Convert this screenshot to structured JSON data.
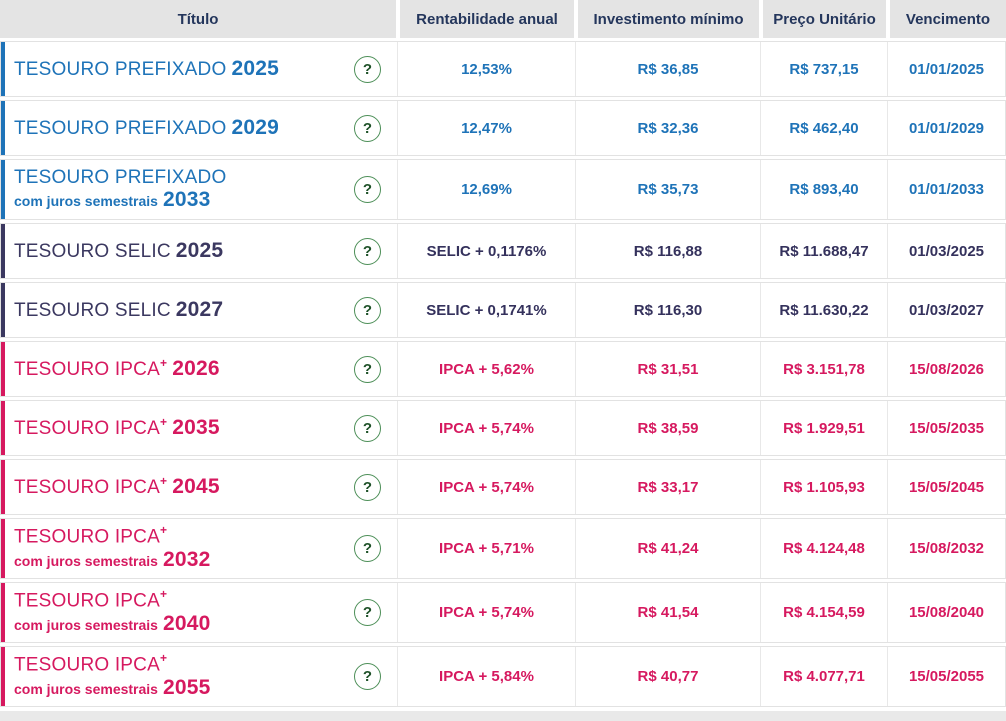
{
  "colors": {
    "prefixado_accent": "#1e73b8",
    "selic_accent": "#3b3860",
    "ipca_accent": "#d6195f",
    "header_bg": "#e4e4e4",
    "header_text": "#24365c",
    "help_icon_green": "#4d8f58"
  },
  "table": {
    "help_icon": "?",
    "columns": {
      "title": "Título",
      "rate": "Rentabilidade anual",
      "min": "Investimento mínimo",
      "price": "Preço Unitário",
      "maturity": "Vencimento"
    },
    "rows": [
      {
        "type": "prefixado",
        "title": "TESOURO PREFIXADO",
        "sup": "",
        "subtitle": "",
        "year": "2025",
        "rate": "12,53%",
        "min": "R$ 36,85",
        "price": "R$ 737,15",
        "maturity": "01/01/2025"
      },
      {
        "type": "prefixado",
        "title": "TESOURO PREFIXADO",
        "sup": "",
        "subtitle": "",
        "year": "2029",
        "rate": "12,47%",
        "min": "R$ 32,36",
        "price": "R$ 462,40",
        "maturity": "01/01/2029"
      },
      {
        "type": "prefixado",
        "title": "TESOURO PREFIXADO",
        "sup": "",
        "subtitle": "com juros semestrais",
        "year": "2033",
        "rate": "12,69%",
        "min": "R$ 35,73",
        "price": "R$ 893,40",
        "maturity": "01/01/2033"
      },
      {
        "type": "selic",
        "title": "TESOURO SELIC",
        "sup": "",
        "subtitle": "",
        "year": "2025",
        "rate": "SELIC + 0,1176%",
        "min": "R$ 116,88",
        "price": "R$ 11.688,47",
        "maturity": "01/03/2025"
      },
      {
        "type": "selic",
        "title": "TESOURO SELIC",
        "sup": "",
        "subtitle": "",
        "year": "2027",
        "rate": "SELIC + 0,1741%",
        "min": "R$ 116,30",
        "price": "R$ 11.630,22",
        "maturity": "01/03/2027"
      },
      {
        "type": "ipca",
        "title": "TESOURO IPCA",
        "sup": "+",
        "subtitle": "",
        "year": "2026",
        "rate": "IPCA + 5,62%",
        "min": "R$ 31,51",
        "price": "R$ 3.151,78",
        "maturity": "15/08/2026"
      },
      {
        "type": "ipca",
        "title": "TESOURO IPCA",
        "sup": "+",
        "subtitle": "",
        "year": "2035",
        "rate": "IPCA + 5,74%",
        "min": "R$ 38,59",
        "price": "R$ 1.929,51",
        "maturity": "15/05/2035"
      },
      {
        "type": "ipca",
        "title": "TESOURO IPCA",
        "sup": "+",
        "subtitle": "",
        "year": "2045",
        "rate": "IPCA + 5,74%",
        "min": "R$ 33,17",
        "price": "R$ 1.105,93",
        "maturity": "15/05/2045"
      },
      {
        "type": "ipca",
        "title": "TESOURO IPCA",
        "sup": "+",
        "subtitle": "com juros semestrais",
        "year": "2032",
        "rate": "IPCA + 5,71%",
        "min": "R$ 41,24",
        "price": "R$ 4.124,48",
        "maturity": "15/08/2032"
      },
      {
        "type": "ipca",
        "title": "TESOURO IPCA",
        "sup": "+",
        "subtitle": "com juros semestrais",
        "year": "2040",
        "rate": "IPCA + 5,74%",
        "min": "R$ 41,54",
        "price": "R$ 4.154,59",
        "maturity": "15/08/2040"
      },
      {
        "type": "ipca",
        "title": "TESOURO IPCA",
        "sup": "+",
        "subtitle": "com juros semestrais",
        "year": "2055",
        "rate": "IPCA + 5,84%",
        "min": "R$ 40,77",
        "price": "R$ 4.077,71",
        "maturity": "15/05/2055"
      }
    ]
  }
}
